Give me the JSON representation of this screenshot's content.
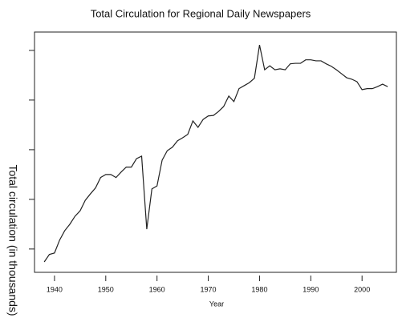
{
  "chart_data": {
    "type": "line",
    "title": "Total Circulation for Regional Daily Newspapers",
    "xlabel": "Year",
    "ylabel": "Total circulation (in thousands)",
    "x": [
      1938,
      1939,
      1940,
      1941,
      1942,
      1943,
      1944,
      1945,
      1946,
      1947,
      1948,
      1949,
      1950,
      1951,
      1952,
      1953,
      1954,
      1955,
      1956,
      1957,
      1958,
      1959,
      1960,
      1961,
      1962,
      1963,
      1964,
      1965,
      1966,
      1967,
      1968,
      1969,
      1970,
      1971,
      1972,
      1973,
      1974,
      1975,
      1976,
      1977,
      1978,
      1979,
      1980,
      1981,
      1982,
      1983,
      1984,
      1985,
      1986,
      1987,
      1988,
      1989,
      1990,
      1991,
      1992,
      1993,
      1994,
      1995,
      1996,
      1997,
      1998,
      1999,
      2000,
      2001,
      2002,
      2003,
      2004,
      2005
    ],
    "series": [
      {
        "color": "#222222",
        "values": [
          0.74,
          0.89,
          0.92,
          1.18,
          1.37,
          1.5,
          1.66,
          1.77,
          1.98,
          2.11,
          2.23,
          2.44,
          2.5,
          2.5,
          2.44,
          2.55,
          2.65,
          2.65,
          2.82,
          2.87,
          1.4,
          2.21,
          2.27,
          2.79,
          2.98,
          3.05,
          3.18,
          3.24,
          3.31,
          3.58,
          3.45,
          3.61,
          3.68,
          3.69,
          3.77,
          3.87,
          4.08,
          3.97,
          4.23,
          4.29,
          4.35,
          4.44,
          5.11,
          4.61,
          4.69,
          4.61,
          4.63,
          4.61,
          4.73,
          4.74,
          4.74,
          4.81,
          4.81,
          4.79,
          4.79,
          4.73,
          4.68,
          4.61,
          4.53,
          4.45,
          4.42,
          4.37,
          4.21,
          4.23,
          4.23,
          4.27,
          4.32,
          4.27
        ]
      }
    ],
    "xlim": [
      1936.1,
      2006.7
    ],
    "xticks": [
      1940,
      1950,
      1960,
      1970,
      1980,
      1990,
      2000
    ],
    "ylim": [
      0.53,
      5.37
    ],
    "yticks": [
      1,
      2,
      3,
      4,
      5
    ]
  }
}
